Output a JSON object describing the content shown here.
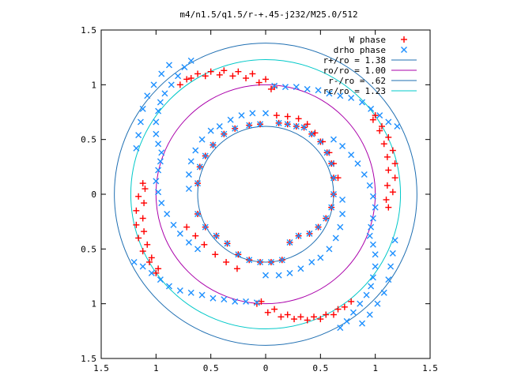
{
  "chart_data": {
    "type": "scatter",
    "title": "m4/n1.5/q1.5/r-+.45-j232/M25.0/512",
    "xlim": [
      -1.5,
      1.5
    ],
    "ylim": [
      -1.5,
      1.5
    ],
    "x_tick_labels": [
      "1.5",
      "1",
      "0.5",
      "0",
      "0.5",
      "1",
      "1.5"
    ],
    "y_tick_labels": [
      "1.5",
      "1",
      "0.5",
      "0",
      "0.5",
      "1",
      "1.5"
    ],
    "x_ticks": [
      -1.5,
      -1,
      -0.5,
      0,
      0.5,
      1,
      1.5
    ],
    "y_ticks": [
      1.5,
      1,
      0.5,
      0,
      -0.5,
      -1,
      -1.5
    ],
    "grid": false,
    "legend_position": "top-right",
    "series": [
      {
        "name": "W phase",
        "marker": "plus",
        "color": "#ff0000",
        "points": [
          [
            0.12,
            0.65
          ],
          [
            0.2,
            0.64
          ],
          [
            0.28,
            0.62
          ],
          [
            0.35,
            0.61
          ],
          [
            0.42,
            0.55
          ],
          [
            0.5,
            0.48
          ],
          [
            0.56,
            0.38
          ],
          [
            0.6,
            0.28
          ],
          [
            0.62,
            0.15
          ],
          [
            0.62,
            0.0
          ],
          [
            0.6,
            -0.12
          ],
          [
            0.55,
            -0.22
          ],
          [
            0.48,
            -0.3
          ],
          [
            0.4,
            -0.36
          ],
          [
            0.3,
            -0.38
          ],
          [
            0.22,
            -0.44
          ],
          [
            -0.62,
            -0.18
          ],
          [
            -0.55,
            -0.3
          ],
          [
            -0.45,
            -0.38
          ],
          [
            -0.35,
            -0.45
          ],
          [
            -0.25,
            -0.55
          ],
          [
            -0.15,
            -0.6
          ],
          [
            -0.05,
            -0.62
          ],
          [
            0.05,
            -0.62
          ],
          [
            0.15,
            -0.6
          ],
          [
            -0.62,
            0.1
          ],
          [
            -0.6,
            0.25
          ],
          [
            -0.55,
            0.35
          ],
          [
            -0.48,
            0.45
          ],
          [
            -0.38,
            0.55
          ],
          [
            -0.28,
            0.6
          ],
          [
            -0.15,
            0.63
          ],
          [
            -0.05,
            0.64
          ],
          [
            0.1,
            0.72
          ],
          [
            0.2,
            0.71
          ],
          [
            0.3,
            0.69
          ],
          [
            0.38,
            0.64
          ],
          [
            0.45,
            0.56
          ],
          [
            0.52,
            0.48
          ],
          [
            0.58,
            0.38
          ],
          [
            0.62,
            0.28
          ],
          [
            0.66,
            0.15
          ],
          [
            -0.72,
            -0.3
          ],
          [
            -0.64,
            -0.38
          ],
          [
            -0.56,
            -0.46
          ],
          [
            -0.46,
            -0.55
          ],
          [
            -0.36,
            -0.62
          ],
          [
            -0.26,
            -0.68
          ],
          [
            -0.72,
            1.05
          ],
          [
            -0.62,
            1.1
          ],
          [
            -0.5,
            1.12
          ],
          [
            -0.38,
            1.13
          ],
          [
            -0.25,
            1.12
          ],
          [
            -0.12,
            1.1
          ],
          [
            0.0,
            1.05
          ],
          [
            0.08,
            0.98
          ],
          [
            -0.78,
            1.0
          ],
          [
            -0.68,
            1.06
          ],
          [
            -0.55,
            1.08
          ],
          [
            -0.42,
            1.09
          ],
          [
            -0.3,
            1.08
          ],
          [
            -0.18,
            1.06
          ],
          [
            -0.06,
            1.02
          ],
          [
            0.05,
            0.96
          ],
          [
            1.0,
            0.72
          ],
          [
            1.06,
            0.62
          ],
          [
            1.12,
            0.52
          ],
          [
            1.16,
            0.4
          ],
          [
            1.18,
            0.28
          ],
          [
            1.18,
            0.15
          ],
          [
            1.16,
            0.02
          ],
          [
            1.12,
            -0.12
          ],
          [
            0.98,
            0.68
          ],
          [
            1.04,
            0.58
          ],
          [
            1.08,
            0.46
          ],
          [
            1.11,
            0.34
          ],
          [
            1.12,
            0.22
          ],
          [
            1.11,
            0.08
          ],
          [
            1.1,
            -0.05
          ],
          [
            0.72,
            -1.03
          ],
          [
            0.62,
            -1.1
          ],
          [
            0.5,
            -1.14
          ],
          [
            0.38,
            -1.15
          ],
          [
            0.26,
            -1.14
          ],
          [
            0.14,
            -1.12
          ],
          [
            0.02,
            -1.08
          ],
          [
            -0.08,
            -1.0
          ],
          [
            0.78,
            -0.98
          ],
          [
            0.66,
            -1.05
          ],
          [
            0.55,
            -1.1
          ],
          [
            0.44,
            -1.12
          ],
          [
            0.32,
            -1.12
          ],
          [
            0.2,
            -1.1
          ],
          [
            0.08,
            -1.05
          ],
          [
            -0.04,
            -0.98
          ],
          [
            -1.0,
            -0.72
          ],
          [
            -1.06,
            -0.62
          ],
          [
            -1.12,
            -0.52
          ],
          [
            -1.16,
            -0.4
          ],
          [
            -1.18,
            -0.28
          ],
          [
            -1.18,
            -0.15
          ],
          [
            -1.16,
            -0.02
          ],
          [
            -1.12,
            0.1
          ],
          [
            -0.98,
            -0.68
          ],
          [
            -1.04,
            -0.58
          ],
          [
            -1.08,
            -0.46
          ],
          [
            -1.11,
            -0.34
          ],
          [
            -1.12,
            -0.22
          ],
          [
            -1.11,
            -0.08
          ],
          [
            -1.1,
            0.05
          ]
        ]
      },
      {
        "name": "drho phase",
        "marker": "cross",
        "color": "#1e90ff",
        "points": [
          [
            0.12,
            0.65
          ],
          [
            0.2,
            0.64
          ],
          [
            0.28,
            0.62
          ],
          [
            0.35,
            0.61
          ],
          [
            0.42,
            0.55
          ],
          [
            0.5,
            0.48
          ],
          [
            0.56,
            0.38
          ],
          [
            0.6,
            0.28
          ],
          [
            0.62,
            0.15
          ],
          [
            0.62,
            0.0
          ],
          [
            0.6,
            -0.12
          ],
          [
            0.55,
            -0.22
          ],
          [
            0.48,
            -0.3
          ],
          [
            0.4,
            -0.36
          ],
          [
            0.3,
            -0.38
          ],
          [
            0.22,
            -0.44
          ],
          [
            -0.62,
            -0.18
          ],
          [
            -0.55,
            -0.3
          ],
          [
            -0.45,
            -0.38
          ],
          [
            -0.35,
            -0.45
          ],
          [
            -0.25,
            -0.55
          ],
          [
            -0.15,
            -0.6
          ],
          [
            -0.05,
            -0.62
          ],
          [
            0.05,
            -0.62
          ],
          [
            0.15,
            -0.6
          ],
          [
            -0.62,
            0.1
          ],
          [
            -0.6,
            0.25
          ],
          [
            -0.55,
            0.35
          ],
          [
            -0.48,
            0.45
          ],
          [
            -0.38,
            0.55
          ],
          [
            -0.28,
            0.6
          ],
          [
            -0.15,
            0.63
          ],
          [
            -0.05,
            0.64
          ],
          [
            -0.7,
            0.05
          ],
          [
            -0.7,
            0.18
          ],
          [
            -0.68,
            0.3
          ],
          [
            -0.64,
            0.4
          ],
          [
            -0.58,
            0.5
          ],
          [
            -0.5,
            0.58
          ],
          [
            -0.42,
            0.62
          ],
          [
            -0.32,
            0.68
          ],
          [
            -0.22,
            0.72
          ],
          [
            -0.12,
            0.74
          ],
          [
            0.0,
            0.74
          ],
          [
            0.7,
            -0.05
          ],
          [
            0.7,
            -0.18
          ],
          [
            0.68,
            -0.3
          ],
          [
            0.64,
            -0.4
          ],
          [
            0.58,
            -0.5
          ],
          [
            0.5,
            -0.58
          ],
          [
            0.42,
            -0.62
          ],
          [
            0.32,
            -0.68
          ],
          [
            0.22,
            -0.72
          ],
          [
            0.12,
            -0.74
          ],
          [
            0.0,
            -0.74
          ],
          [
            -0.68,
            1.22
          ],
          [
            -0.74,
            1.16
          ],
          [
            -0.8,
            1.08
          ],
          [
            -0.86,
            1.0
          ],
          [
            -0.92,
            0.92
          ],
          [
            -0.96,
            0.84
          ],
          [
            -0.98,
            0.76
          ],
          [
            -1.0,
            0.66
          ],
          [
            -1.0,
            0.55
          ],
          [
            -0.98,
            0.46
          ],
          [
            -0.95,
            0.38
          ],
          [
            -0.96,
            0.3
          ],
          [
            -0.98,
            0.22
          ],
          [
            -1.0,
            0.12
          ],
          [
            -0.98,
            0.02
          ],
          [
            -0.95,
            -0.08
          ],
          [
            -0.9,
            -0.18
          ],
          [
            -0.84,
            -0.28
          ],
          [
            -0.78,
            -0.36
          ],
          [
            -0.7,
            -0.44
          ],
          [
            -0.62,
            -0.5
          ],
          [
            0.68,
            -1.22
          ],
          [
            0.74,
            -1.16
          ],
          [
            0.8,
            -1.08
          ],
          [
            0.86,
            -1.0
          ],
          [
            0.92,
            -0.92
          ],
          [
            0.96,
            -0.84
          ],
          [
            0.98,
            -0.76
          ],
          [
            1.0,
            -0.66
          ],
          [
            1.0,
            -0.55
          ],
          [
            0.98,
            -0.46
          ],
          [
            0.95,
            -0.38
          ],
          [
            0.96,
            -0.3
          ],
          [
            0.98,
            -0.22
          ],
          [
            1.0,
            -0.12
          ],
          [
            0.98,
            -0.02
          ],
          [
            0.95,
            0.08
          ],
          [
            0.9,
            0.18
          ],
          [
            0.84,
            0.28
          ],
          [
            0.78,
            0.36
          ],
          [
            0.7,
            0.44
          ],
          [
            0.62,
            0.5
          ],
          [
            1.2,
            0.62
          ],
          [
            1.12,
            0.66
          ],
          [
            1.04,
            0.72
          ],
          [
            0.96,
            0.78
          ],
          [
            0.88,
            0.84
          ],
          [
            0.78,
            0.88
          ],
          [
            0.68,
            0.9
          ],
          [
            0.58,
            0.92
          ],
          [
            0.48,
            0.95
          ],
          [
            0.38,
            0.96
          ],
          [
            0.28,
            0.98
          ],
          [
            0.18,
            0.98
          ],
          [
            0.08,
            0.99
          ],
          [
            -1.2,
            -0.62
          ],
          [
            -1.12,
            -0.66
          ],
          [
            -1.04,
            -0.72
          ],
          [
            -0.96,
            -0.78
          ],
          [
            -0.88,
            -0.84
          ],
          [
            -0.78,
            -0.88
          ],
          [
            -0.68,
            -0.9
          ],
          [
            -0.58,
            -0.92
          ],
          [
            -0.48,
            -0.95
          ],
          [
            -0.38,
            -0.96
          ],
          [
            -0.28,
            -0.98
          ],
          [
            -0.18,
            -0.98
          ],
          [
            -0.08,
            -0.99
          ],
          [
            -0.88,
            1.18
          ],
          [
            -0.95,
            1.1
          ],
          [
            -1.02,
            1.0
          ],
          [
            -1.08,
            0.9
          ],
          [
            -1.12,
            0.78
          ],
          [
            -1.14,
            0.66
          ],
          [
            -1.16,
            0.54
          ],
          [
            -1.18,
            0.42
          ],
          [
            0.88,
            -1.18
          ],
          [
            0.95,
            -1.1
          ],
          [
            1.02,
            -1.0
          ],
          [
            1.08,
            -0.9
          ],
          [
            1.12,
            -0.78
          ],
          [
            1.14,
            -0.66
          ],
          [
            1.16,
            -0.54
          ],
          [
            1.18,
            -0.42
          ]
        ]
      }
    ],
    "circles": [
      {
        "label": "r+/ro = 1.38",
        "r": 1.38,
        "color": "#1f6fb2"
      },
      {
        "label": "ro/ro = 1.00",
        "r": 1.0,
        "color": "#aa00aa"
      },
      {
        "label": "r-/ro = .62",
        "r": 0.62,
        "color": "#1f6fb2"
      },
      {
        "label": "rc/ro = 1.23",
        "r": 1.23,
        "color": "#00c8c8"
      }
    ]
  }
}
